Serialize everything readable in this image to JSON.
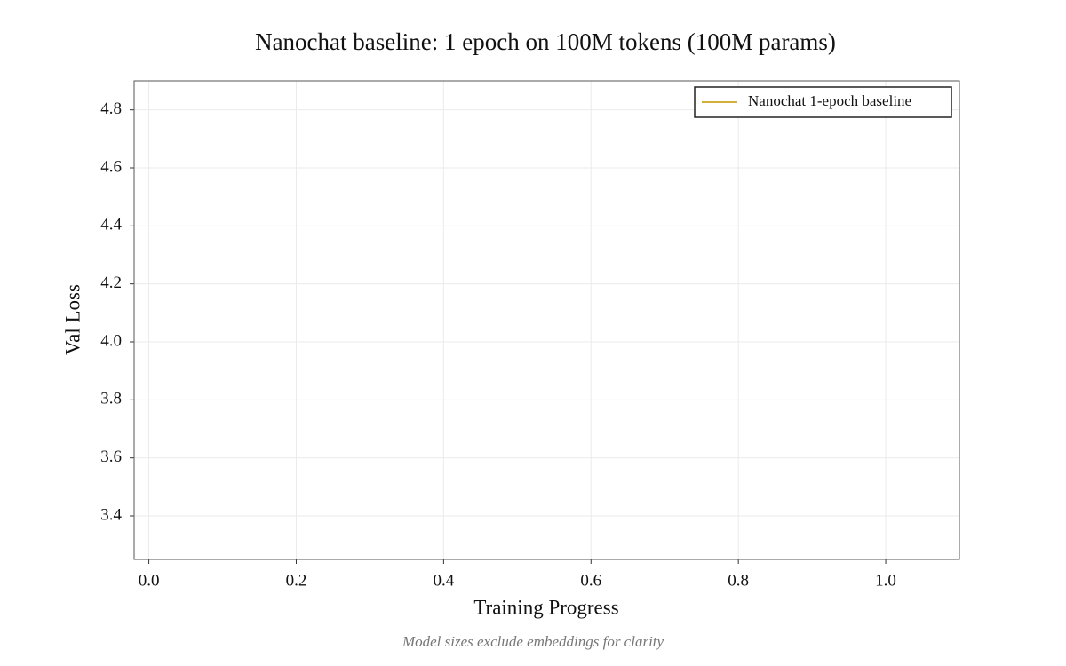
{
  "chart_data": {
    "type": "line",
    "title": "Nanochat baseline: 1 epoch on 100M tokens (100M params)",
    "x_label": "Training Progress",
    "y_label": "Val Loss",
    "footnote": "Model sizes exclude embeddings for clarity",
    "x": [],
    "series": [
      {
        "name": "Nanochat 1-epoch baseline",
        "color": "#d4b03a",
        "values": []
      }
    ],
    "xlim": [
      -0.02,
      1.1
    ],
    "xticks": [
      {
        "value": 0,
        "label": "0.0"
      },
      0.2,
      0.4,
      0.6,
      0.8,
      {
        "value": 1,
        "label": "1.0"
      }
    ],
    "ylim": [
      3.25,
      4.9
    ],
    "yticks": [
      3.4,
      3.6,
      3.8,
      {
        "value": 4,
        "label": "4.0"
      },
      4.2,
      4.4,
      4.6,
      4.8
    ],
    "grid": true,
    "legend": "upper right"
  }
}
